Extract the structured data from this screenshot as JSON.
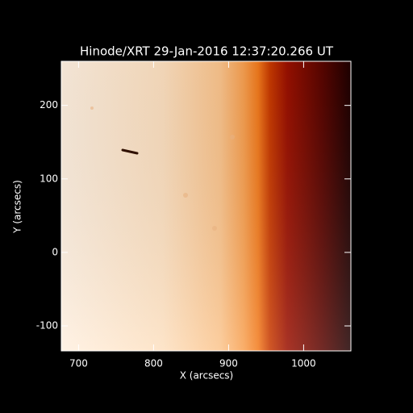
{
  "chart_data": {
    "type": "image",
    "title": "Hinode/XRT 29-Jan-2016 12:37:20.266 UT",
    "xlabel": "X (arcsecs)",
    "ylabel": "Y (arcsecs)",
    "xlim": [
      677,
      1063
    ],
    "ylim": [
      -134,
      260
    ],
    "xticks": [
      700,
      800,
      900,
      1000
    ],
    "yticks": [
      -100,
      0,
      100,
      200
    ]
  }
}
